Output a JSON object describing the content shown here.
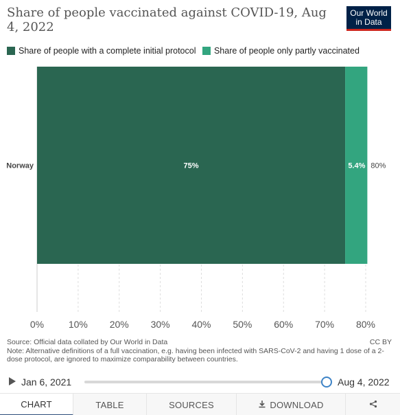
{
  "header": {
    "title": "Share of people vaccinated against COVID-19, Aug 4, 2022",
    "logo_line1": "Our World",
    "logo_line2": "in Data"
  },
  "legend": [
    {
      "label": "Share of people with a complete initial protocol",
      "color": "#2a6651"
    },
    {
      "label": "Share of people only partly vaccinated",
      "color": "#33a57f"
    }
  ],
  "chart_data": {
    "type": "bar",
    "orientation": "horizontal",
    "stacked": true,
    "categories": [
      "Norway"
    ],
    "series": [
      {
        "name": "Share of people with a complete initial protocol",
        "values": [
          75
        ],
        "color": "#2a6651"
      },
      {
        "name": "Share of people only partly vaccinated",
        "values": [
          5.4
        ],
        "color": "#33a57f"
      }
    ],
    "value_labels": [
      "75%",
      "5.4%"
    ],
    "total_labels": [
      "80%"
    ],
    "xlim": [
      0,
      80
    ],
    "x_ticks": [
      0,
      10,
      20,
      30,
      40,
      50,
      60,
      70,
      80
    ],
    "x_tick_labels": [
      "0%",
      "10%",
      "20%",
      "30%",
      "40%",
      "50%",
      "60%",
      "70%",
      "80%"
    ],
    "grid": true
  },
  "footer": {
    "source": "Source: Official data collated by Our World in Data",
    "note": "Note: Alternative definitions of a full vaccination, e.g. having been infected with SARS-CoV-2 and having 1 dose of a 2-dose protocol, are ignored to maximize comparability between countries.",
    "license": "CC BY"
  },
  "timeline": {
    "start_date": "Jan 6, 2021",
    "end_date": "Aug 4, 2022",
    "position": 1.0
  },
  "tabs": [
    {
      "label": "CHART",
      "active": true
    },
    {
      "label": "TABLE",
      "active": false
    },
    {
      "label": "SOURCES",
      "active": false
    },
    {
      "label": "DOWNLOAD",
      "active": false
    },
    {
      "label": "",
      "icon": "share-icon",
      "active": false
    }
  ]
}
